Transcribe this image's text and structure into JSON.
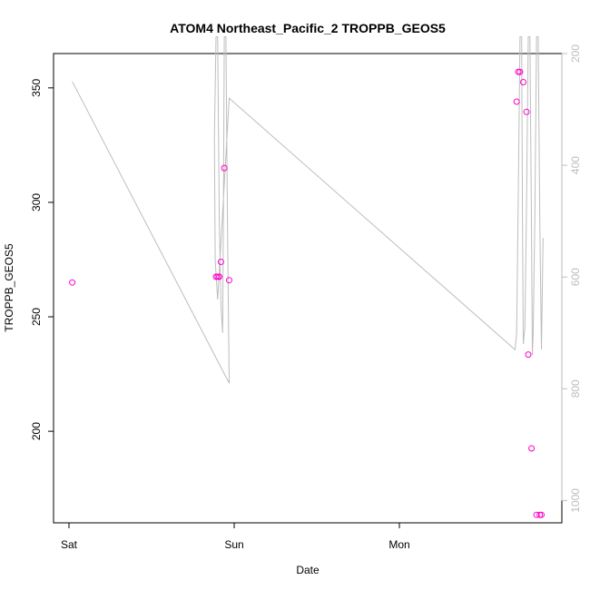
{
  "chart_data": {
    "type": "scatter",
    "title": "ATOM4 Northeast_Pacific_2 TROPPB_GEOS5",
    "xlabel": "Date",
    "ylabel": "TROPPB_GEOS5",
    "x_ticks": [
      "Sat",
      "Sun",
      "Mon"
    ],
    "ylim": [
      160,
      365
    ],
    "y_ticks": [
      200,
      250,
      300,
      350
    ],
    "y2_ticks": [
      200,
      400,
      600,
      800,
      1000
    ],
    "y2lim_reversed": [
      200,
      1040
    ],
    "series": [
      {
        "kind": "points",
        "color": "#ff00cc",
        "x_days": [
          0.02,
          0.89,
          0.9,
          0.91,
          0.92,
          0.94,
          0.97,
          2.71,
          2.72,
          2.73,
          2.75,
          2.77,
          2.78,
          2.8,
          2.83,
          2.85,
          2.86
        ],
        "y": [
          265,
          267.5,
          267.5,
          267.5,
          274,
          315,
          266,
          344,
          357,
          357,
          352.5,
          339.5,
          233.5,
          192.5,
          163.5,
          163.5,
          163.5
        ]
      },
      {
        "kind": "line",
        "color": "#bdbdbd",
        "axis": "right",
        "x_days": [
          0.02,
          0.97,
          0.96,
          0.95,
          0.94,
          0.935,
          0.93,
          0.92,
          0.91,
          0.9,
          0.89,
          0.88,
          0.885,
          0.9,
          0.97,
          2.7,
          2.71,
          2.72,
          2.73,
          2.74,
          2.745,
          2.75,
          2.76,
          2.77,
          2.78,
          2.79,
          2.8,
          2.805,
          2.81,
          2.82,
          2.83,
          2.84,
          2.85,
          2.86,
          2.87
        ],
        "y": [
          250,
          790,
          520,
          170,
          170,
          460,
          700,
          650,
          500,
          170,
          170,
          350,
          570,
          640,
          280,
          730,
          700,
          450,
          170,
          170,
          490,
          720,
          690,
          470,
          170,
          170,
          520,
          740,
          700,
          500,
          170,
          170,
          500,
          730,
          530
        ]
      }
    ]
  }
}
